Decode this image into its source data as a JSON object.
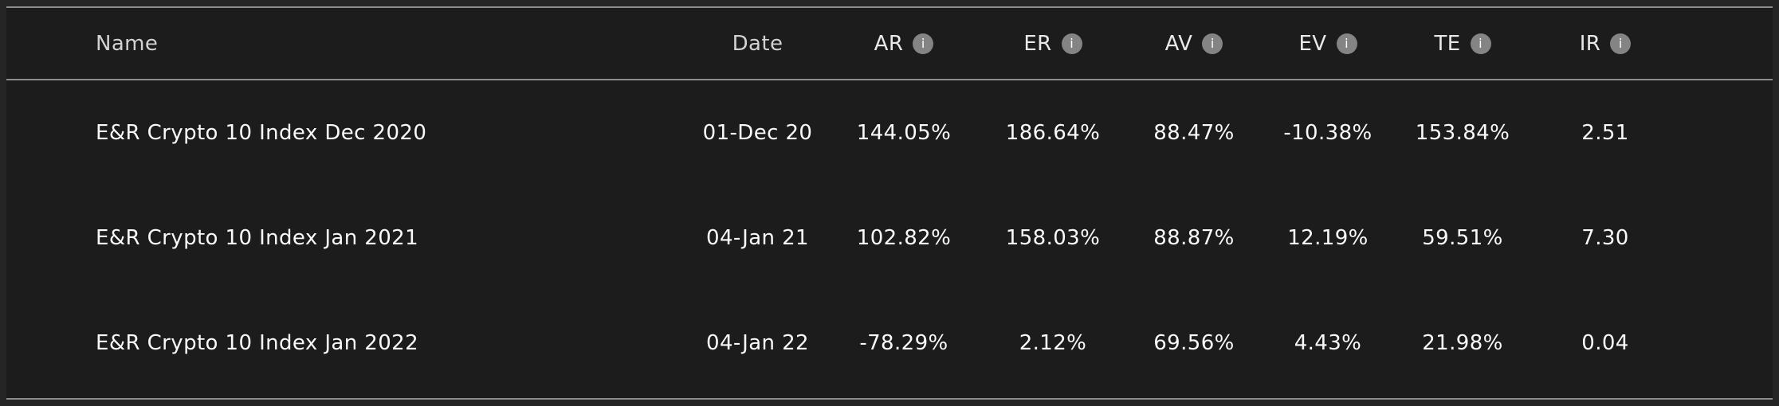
{
  "table": {
    "columns": [
      {
        "key": "name",
        "label": "Name",
        "has_info": false
      },
      {
        "key": "date",
        "label": "Date",
        "has_info": false
      },
      {
        "key": "ar",
        "label": "AR",
        "has_info": true
      },
      {
        "key": "er",
        "label": "ER",
        "has_info": true
      },
      {
        "key": "av",
        "label": "AV",
        "has_info": true
      },
      {
        "key": "ev",
        "label": "EV",
        "has_info": true
      },
      {
        "key": "te",
        "label": "TE",
        "has_info": true
      },
      {
        "key": "ir",
        "label": "IR",
        "has_info": true
      }
    ],
    "rows": [
      {
        "values": [
          "E&R Crypto 10 Index Dec 2020",
          "01-Dec 20",
          "144.05%",
          "186.64%",
          "88.47%",
          "-10.38%",
          "153.84%",
          "2.51"
        ]
      },
      {
        "values": [
          "E&R Crypto 10 Index Jan 2021",
          "04-Jan 21",
          "102.82%",
          "158.03%",
          "88.87%",
          "12.19%",
          "59.51%",
          "7.30"
        ]
      },
      {
        "values": [
          "E&R Crypto 10 Index Jan 2022",
          "04-Jan 22",
          "-78.29%",
          "2.12%",
          "69.56%",
          "4.43%",
          "21.98%",
          "0.04"
        ]
      }
    ]
  },
  "icons": {
    "info": "i"
  },
  "colors": {
    "page_background": "#252526",
    "table_background": "#1c1c1d",
    "rule": "#8d8d8d",
    "header_text": "#e9e9e9",
    "row_text": "#fafafa",
    "info_icon_background": "#848484",
    "info_icon_glyph": "#fdfdfd"
  }
}
